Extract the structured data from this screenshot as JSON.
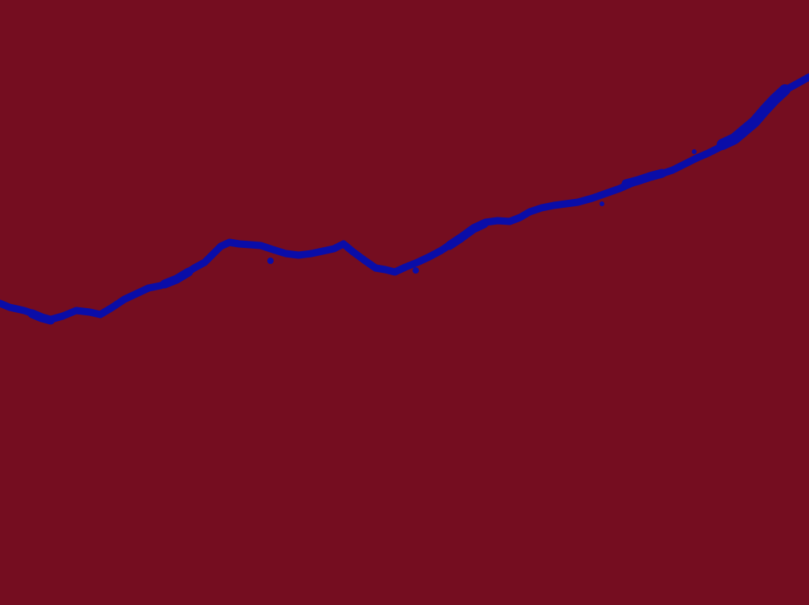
{
  "colors": {
    "background": "#750D20",
    "band": "#0A0DA8"
  }
}
